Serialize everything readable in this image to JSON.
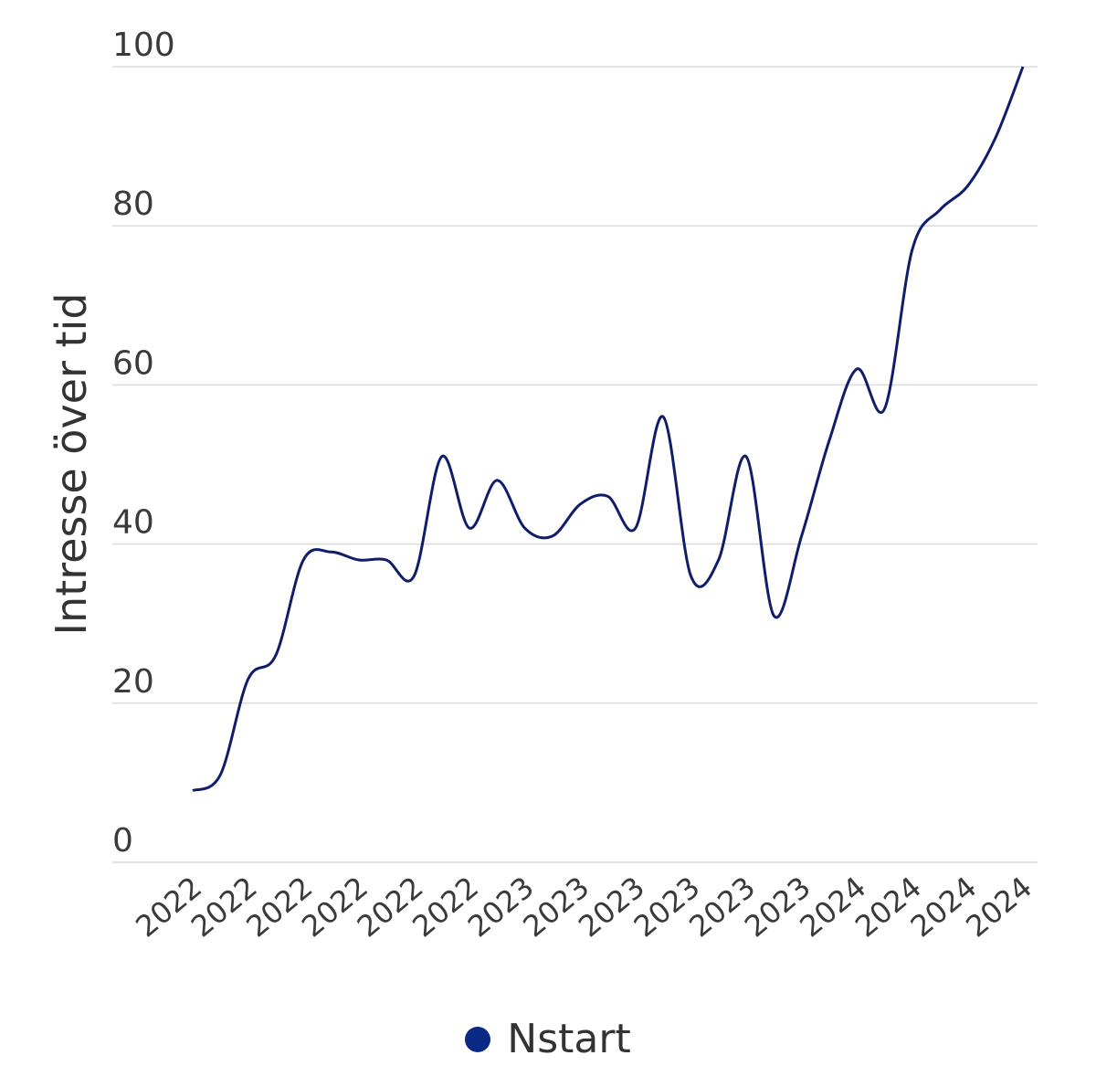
{
  "chart_data": {
    "type": "line",
    "title": "",
    "xlabel": "",
    "ylabel": "Intresse över tid",
    "ylim": [
      0,
      100
    ],
    "yticks": [
      0,
      20,
      40,
      60,
      80,
      100
    ],
    "grid": true,
    "legend_position": "bottom",
    "x_tick_labels": [
      "2022",
      "2022",
      "2022",
      "2022",
      "2022",
      "2022",
      "2023",
      "2023",
      "2023",
      "2023",
      "2023",
      "2023",
      "2024",
      "2024",
      "2024",
      "2024"
    ],
    "series": [
      {
        "name": "Nstart",
        "color": "#0f1d6b",
        "values": [
          9,
          11,
          23,
          26,
          38,
          39,
          38,
          38,
          36,
          51,
          42,
          48,
          42,
          41,
          45,
          46,
          42,
          56,
          36,
          38,
          51,
          31,
          41,
          53,
          62,
          57,
          77,
          82,
          85,
          91,
          100
        ]
      }
    ]
  },
  "legend": {
    "label": "Nstart",
    "color": "#0b2a86"
  }
}
